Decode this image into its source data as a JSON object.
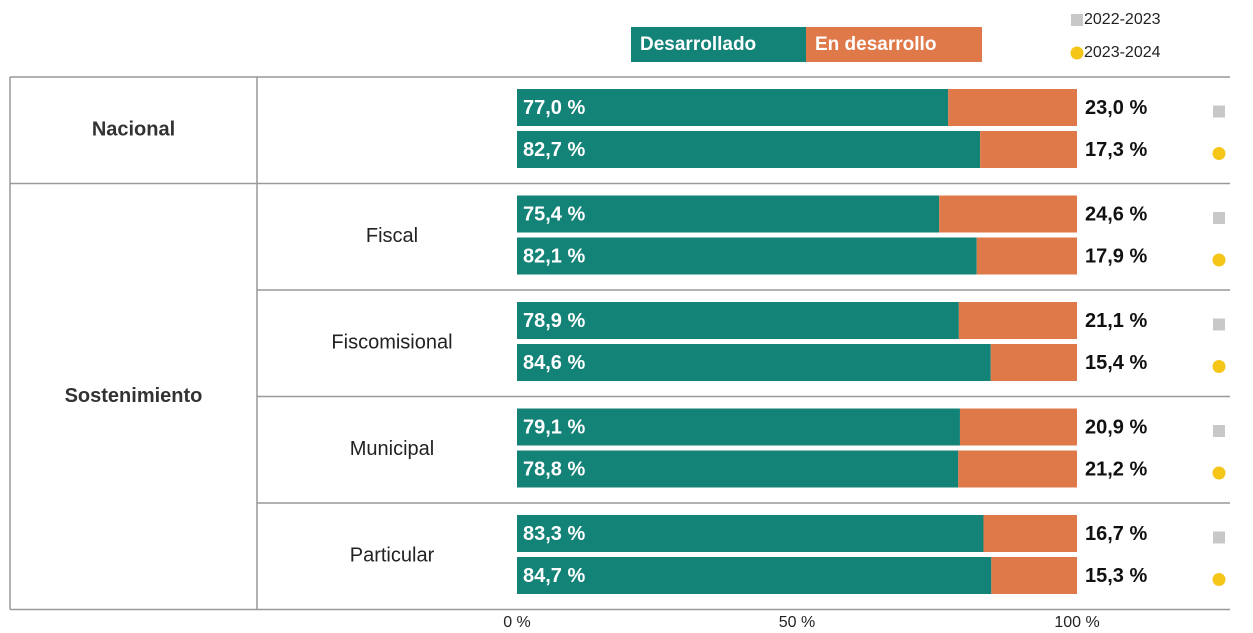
{
  "chart_data": {
    "type": "bar",
    "orientation": "horizontal",
    "stacked": true,
    "sections": [
      {
        "label": "Nacional",
        "groups": [
          null
        ]
      },
      {
        "label": "Sostenimiento",
        "groups": [
          "Fiscal",
          "Fiscomisional",
          "Municipal",
          "Particular"
        ]
      }
    ],
    "periods": [
      {
        "name": "2022-2023",
        "marker": "square",
        "color": "#c8c8c8"
      },
      {
        "name": "2023-2024",
        "marker": "circle",
        "color": "#f5c518"
      }
    ],
    "series": [
      {
        "name": "Desarrollado",
        "color": "#138277",
        "values": [
          77.0,
          82.7,
          75.4,
          82.1,
          78.9,
          84.6,
          79.1,
          78.8,
          83.3,
          84.7
        ],
        "value_labels": [
          "77,0 %",
          "82,7 %",
          "75,4 %",
          "82,1 %",
          "78,9 %",
          "84,6 %",
          "79,1 %",
          "78,8 %",
          "83,3 %",
          "84,7 %"
        ]
      },
      {
        "name": "En desarrollo",
        "color": "#e0794a",
        "values": [
          23.0,
          17.3,
          24.6,
          17.9,
          21.1,
          15.4,
          20.9,
          21.2,
          16.7,
          15.3
        ],
        "value_labels": [
          "23,0 %",
          "17,3 %",
          "24,6 %",
          "17,9 %",
          "21,1 %",
          "15,4 %",
          "20,9 %",
          "21,2 %",
          "16,7 %",
          "15,3 %"
        ]
      }
    ],
    "xlim": [
      0,
      100
    ],
    "xticks": [
      {
        "value": 0,
        "label": "0 %"
      },
      {
        "value": 50,
        "label": "50 %"
      },
      {
        "value": 100,
        "label": "100 %"
      }
    ]
  }
}
